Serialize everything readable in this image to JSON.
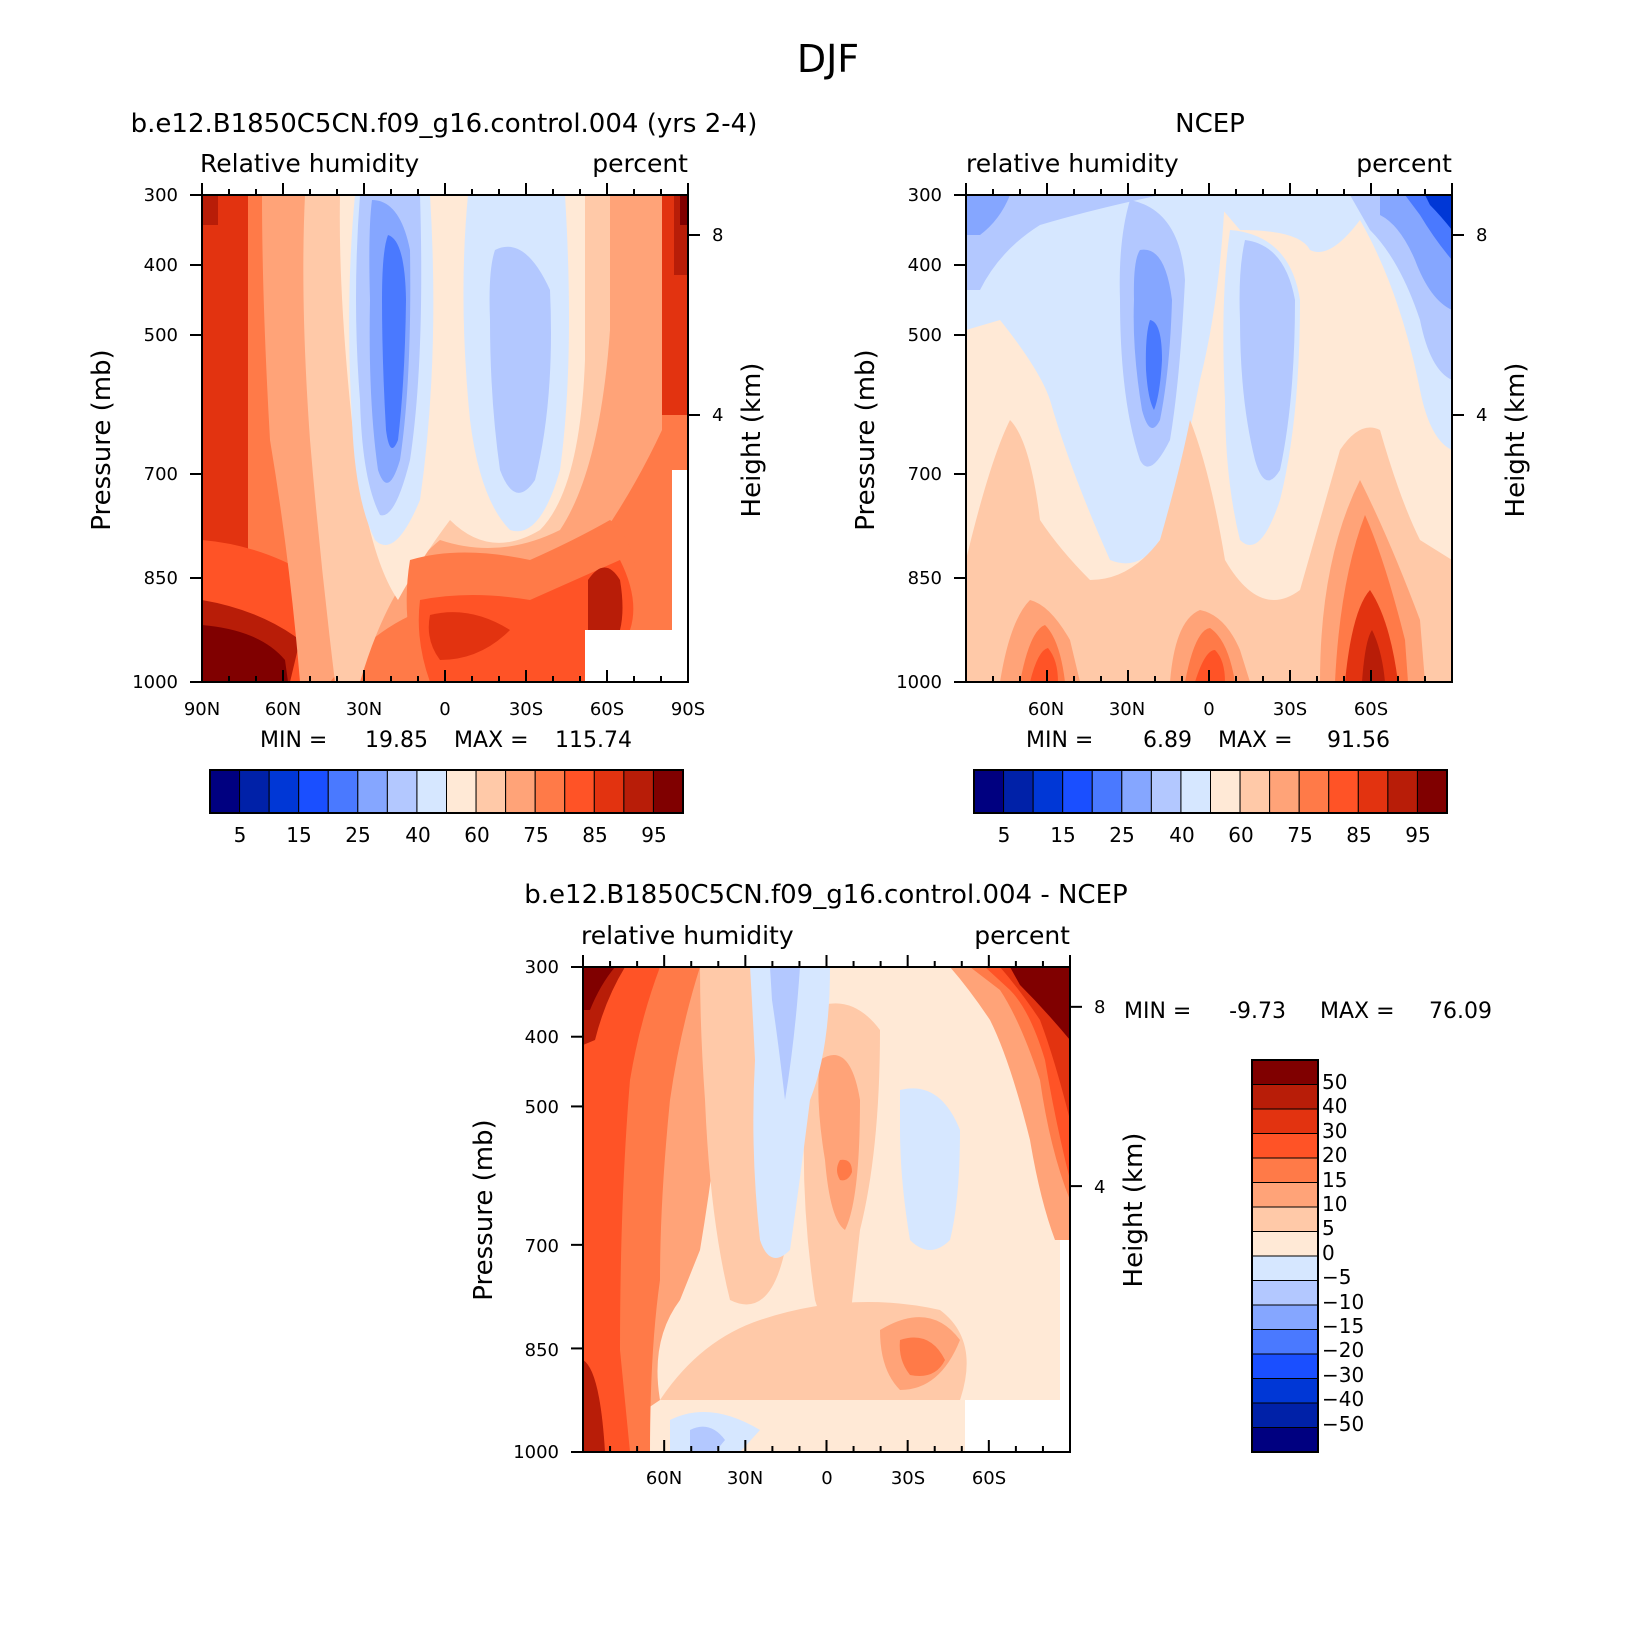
{
  "figure": {
    "title": "DJF"
  },
  "chart_data": [
    {
      "type": "heatmap",
      "id": "model",
      "title": "b.e12.B1850C5CN.f09_g16.control.004 (yrs 2-4)",
      "left_label": "Relative humidity",
      "right_label": "percent",
      "xlabel": "",
      "ylabel": "Pressure (mb)",
      "y2label": "Height (km)",
      "x_ticks": [
        "90N",
        "60N",
        "30N",
        "0",
        "30S",
        "60S",
        "90S"
      ],
      "y_ticks": [
        "300",
        "400",
        "500",
        "700",
        "850",
        "1000"
      ],
      "y2_ticks": [
        "8",
        "4"
      ],
      "stats": {
        "min_label": "MIN =",
        "min": "19.85",
        "max_label": "MAX =",
        "max": "115.74"
      },
      "colorbar_labels": [
        "5",
        "15",
        "25",
        "40",
        "60",
        "75",
        "85",
        "95"
      ],
      "levels": [
        5,
        10,
        15,
        20,
        25,
        30,
        40,
        50,
        60,
        70,
        75,
        80,
        85,
        90,
        95
      ],
      "colors": [
        "#000080",
        "#0021a8",
        "#0037d6",
        "#1a4fff",
        "#4a79ff",
        "#85a6ff",
        "#b3c8ff",
        "#d6e7ff",
        "#ffe9d6",
        "#ffc9a8",
        "#ffa378",
        "#ff7a48",
        "#ff5326",
        "#e23310",
        "#b81d08",
        "#800000"
      ]
    },
    {
      "type": "heatmap",
      "id": "ncep",
      "title": "NCEP",
      "left_label": "relative humidity",
      "right_label": "percent",
      "xlabel": "",
      "ylabel": "Pressure (mb)",
      "y2label": "Height (km)",
      "x_ticks": [
        "60N",
        "30N",
        "0",
        "30S",
        "60S"
      ],
      "y_ticks": [
        "300",
        "400",
        "500",
        "700",
        "850",
        "1000"
      ],
      "y2_ticks": [
        "8",
        "4"
      ],
      "stats": {
        "min_label": "MIN =",
        "min": "6.89",
        "max_label": "MAX =",
        "max": "91.56"
      },
      "colorbar_labels": [
        "5",
        "15",
        "25",
        "40",
        "60",
        "75",
        "85",
        "95"
      ],
      "levels": [
        5,
        10,
        15,
        20,
        25,
        30,
        40,
        50,
        60,
        70,
        75,
        80,
        85,
        90,
        95
      ],
      "colors": [
        "#000080",
        "#0021a8",
        "#0037d6",
        "#1a4fff",
        "#4a79ff",
        "#85a6ff",
        "#b3c8ff",
        "#d6e7ff",
        "#ffe9d6",
        "#ffc9a8",
        "#ffa378",
        "#ff7a48",
        "#ff5326",
        "#e23310",
        "#b81d08",
        "#800000"
      ]
    },
    {
      "type": "heatmap",
      "id": "difference",
      "title": "b.e12.B1850C5CN.f09_g16.control.004 - NCEP",
      "left_label": "relative humidity",
      "right_label": "percent",
      "xlabel": "",
      "ylabel": "Pressure (mb)",
      "y2label": "Height (km)",
      "x_ticks": [
        "60N",
        "30N",
        "0",
        "30S",
        "60S"
      ],
      "y_ticks": [
        "300",
        "400",
        "500",
        "700",
        "850",
        "1000"
      ],
      "y2_ticks": [
        "8",
        "4"
      ],
      "stats": {
        "min_label": "MIN =",
        "min": "-9.73",
        "max_label": "MAX =",
        "max": "76.09"
      },
      "colorbar_labels": [
        "50",
        "40",
        "30",
        "20",
        "15",
        "10",
        "5",
        "0",
        "−5",
        "−10",
        "−15",
        "−20",
        "−30",
        "−40",
        "−50"
      ],
      "levels": [
        -50,
        -40,
        -30,
        -20,
        -15,
        -10,
        -5,
        0,
        5,
        10,
        15,
        20,
        30,
        40,
        50
      ],
      "colors": [
        "#000080",
        "#0021a8",
        "#0037d6",
        "#1a4fff",
        "#4a79ff",
        "#85a6ff",
        "#b3c8ff",
        "#d6e7ff",
        "#ffe9d6",
        "#ffc9a8",
        "#ffa378",
        "#ff7a48",
        "#ff5326",
        "#e23310",
        "#b81d08",
        "#800000"
      ]
    }
  ]
}
